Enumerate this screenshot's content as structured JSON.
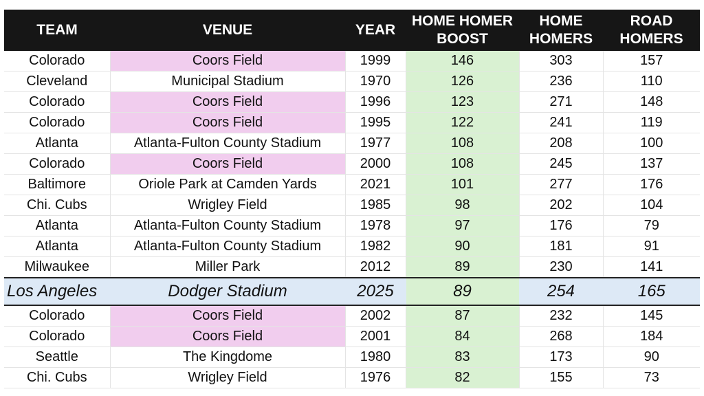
{
  "headers": {
    "team": "TEAM",
    "venue": "VENUE",
    "year": "YEAR",
    "boost_line1": "HOME HOMER",
    "boost_line2": "BOOST",
    "home_line1": "HOME",
    "home_line2": "HOMERS",
    "road_line1": "ROAD",
    "road_line2": "HOMERS"
  },
  "colors": {
    "header_bg": "#161616",
    "boost_column": "#d9f1d2",
    "coors_field": "#f1cdee",
    "highlight_row": "#dde9f6"
  },
  "rows": [
    {
      "team": "Colorado",
      "venue": "Coors Field",
      "year": "1999",
      "boost": "146",
      "home": "303",
      "road": "157"
    },
    {
      "team": "Cleveland",
      "venue": "Municipal Stadium",
      "year": "1970",
      "boost": "126",
      "home": "236",
      "road": "110"
    },
    {
      "team": "Colorado",
      "venue": "Coors Field",
      "year": "1996",
      "boost": "123",
      "home": "271",
      "road": "148"
    },
    {
      "team": "Colorado",
      "venue": "Coors Field",
      "year": "1995",
      "boost": "122",
      "home": "241",
      "road": "119"
    },
    {
      "team": "Atlanta",
      "venue": "Atlanta-Fulton County Stadium",
      "year": "1977",
      "boost": "108",
      "home": "208",
      "road": "100"
    },
    {
      "team": "Colorado",
      "venue": "Coors Field",
      "year": "2000",
      "boost": "108",
      "home": "245",
      "road": "137"
    },
    {
      "team": "Baltimore",
      "venue": "Oriole Park at Camden Yards",
      "year": "2021",
      "boost": "101",
      "home": "277",
      "road": "176"
    },
    {
      "team": "Chi. Cubs",
      "venue": "Wrigley Field",
      "year": "1985",
      "boost": "98",
      "home": "202",
      "road": "104"
    },
    {
      "team": "Atlanta",
      "venue": "Atlanta-Fulton County Stadium",
      "year": "1978",
      "boost": "97",
      "home": "176",
      "road": "79"
    },
    {
      "team": "Atlanta",
      "venue": "Atlanta-Fulton County Stadium",
      "year": "1982",
      "boost": "90",
      "home": "181",
      "road": "91"
    },
    {
      "team": "Milwaukee",
      "venue": "Miller Park",
      "year": "2012",
      "boost": "89",
      "home": "230",
      "road": "141"
    },
    {
      "team": "Los Angeles",
      "venue": "Dodger Stadium",
      "year": "2025",
      "boost": "89",
      "home": "254",
      "road": "165"
    },
    {
      "team": "Colorado",
      "venue": "Coors Field",
      "year": "2002",
      "boost": "87",
      "home": "232",
      "road": "145"
    },
    {
      "team": "Colorado",
      "venue": "Coors Field",
      "year": "2001",
      "boost": "84",
      "home": "268",
      "road": "184"
    },
    {
      "team": "Seattle",
      "venue": "The Kingdome",
      "year": "1980",
      "boost": "83",
      "home": "173",
      "road": "90"
    },
    {
      "team": "Chi. Cubs",
      "venue": "Wrigley Field",
      "year": "1976",
      "boost": "82",
      "home": "155",
      "road": "73"
    }
  ]
}
